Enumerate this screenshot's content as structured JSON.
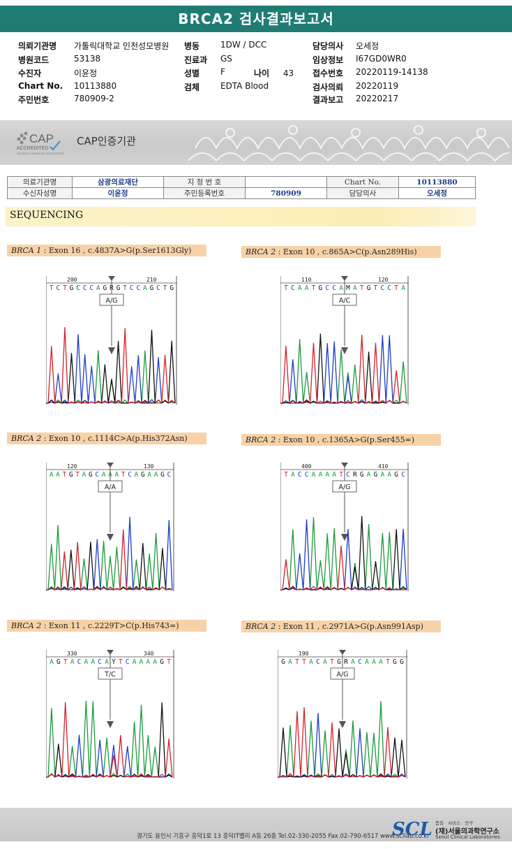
{
  "report_title": "BRCA2 검사결과보고서",
  "header": {
    "col1": [
      {
        "label": "의뢰기관명",
        "value": "가톨릭대학교 인천성모병원"
      },
      {
        "label": "병원코드",
        "value": "53138"
      },
      {
        "label": "수진자",
        "value": "이윤정"
      },
      {
        "label": "Chart No.",
        "value": "10113880"
      },
      {
        "label": "주민번호",
        "value": "780909-2"
      }
    ],
    "col2": [
      {
        "label": "병동",
        "value": "1DW / DCC"
      },
      {
        "label": "진료과",
        "value": "GS"
      },
      {
        "label": "성별",
        "value": "F"
      },
      {
        "label": "검체",
        "value": "EDTA Blood"
      }
    ],
    "age": {
      "label": "나이",
      "value": "43"
    },
    "col3": [
      {
        "label": "담당의사",
        "value": "오세정"
      },
      {
        "label": "임상정보",
        "value": "I67GD0WR0"
      },
      {
        "label": "접수번호",
        "value": "20220119-14138"
      },
      {
        "label": "검사의뢰",
        "value": "20220119"
      },
      {
        "label": "결과보고",
        "value": "20220217"
      }
    ]
  },
  "accreditation": {
    "logo_text": "CAP",
    "logo_sub": "ACCREDITED",
    "logo_small": "COLLEGE of AMERICAN PATHOLOGISTS",
    "name": "CAP인증기관"
  },
  "info_table": {
    "r1": {
      "l1": "의료기관명",
      "v1": "삼광의료재단",
      "l2": "지 정 번 호",
      "v2": "",
      "l3": "Chart No.",
      "v3": "10113880"
    },
    "r2": {
      "l1": "수신자성명",
      "v1": "이윤정",
      "l2": "주민등록번호",
      "v2": "780909",
      "l3": "담당의사",
      "v3": "오세정"
    }
  },
  "section_title": "SEQUENCING",
  "variants": [
    {
      "gene": "BRCA 1",
      "desc": " : Exon 16 , c.4837A>G(p.Ser1613Gly)",
      "pos1": "200",
      "pos2": "210",
      "seq": "TCTGCCCAGRGTCCAGCTG",
      "call": "A/G"
    },
    {
      "gene": "BRCA 2",
      "desc": " : Exon 10 , c.865A>C(p.Asn289His)",
      "pos1": "110",
      "pos2": "120",
      "seq": "TCAATGCCAMATGTCCTA",
      "call": "A/C"
    },
    {
      "gene": "BRCA 2",
      "desc": " : Exon 10 , c.1114C>A(p.His372Asn)",
      "pos1": "120",
      "pos2": "130",
      "seq": "AATGTAGCAAATCAGAAGC",
      "call": "A/A"
    },
    {
      "gene": "BRCA 2",
      "desc": " : Exon 10 , c.1365A>G(p.Ser455=)",
      "pos1": "400",
      "pos2": "410",
      "seq": "TACCAAAATCRGAGAAGC",
      "call": "A/G"
    },
    {
      "gene": "BRCA 2",
      "desc": " : Exon 11 , c.2229T>C(p.His743=)",
      "pos1": "330",
      "pos2": "340",
      "seq": "AGTACAACAYTCAAAAGT",
      "call": "T/C"
    },
    {
      "gene": "BRCA 2",
      "desc": " : Exon 11 , c.2971A>G(p.Asn991Asp)",
      "pos1": "190",
      "pos2": "",
      "seq": "GATTACATGRACAAATGG",
      "call": "A/G"
    }
  ],
  "footer": {
    "address": "경기도 용인시 기흥구 흥덕1로 13 흥덕IT밸리 A동 26층  Tel.02-330-2055  Fax.02-790-6517  www.scllab.co.kr",
    "logo": "SCL",
    "tagline": "품질 · 서비스 · 연구",
    "name_kr": "(재)서울의과학연구소",
    "name_en": "Seoul Clinical Laboratories"
  },
  "colors": {
    "title_bar": "#1f7c73",
    "A": "#1a9a3c",
    "C": "#1c3cc8",
    "G": "#111111",
    "T": "#d8202a",
    "label_bg": "#f7d2a8"
  }
}
